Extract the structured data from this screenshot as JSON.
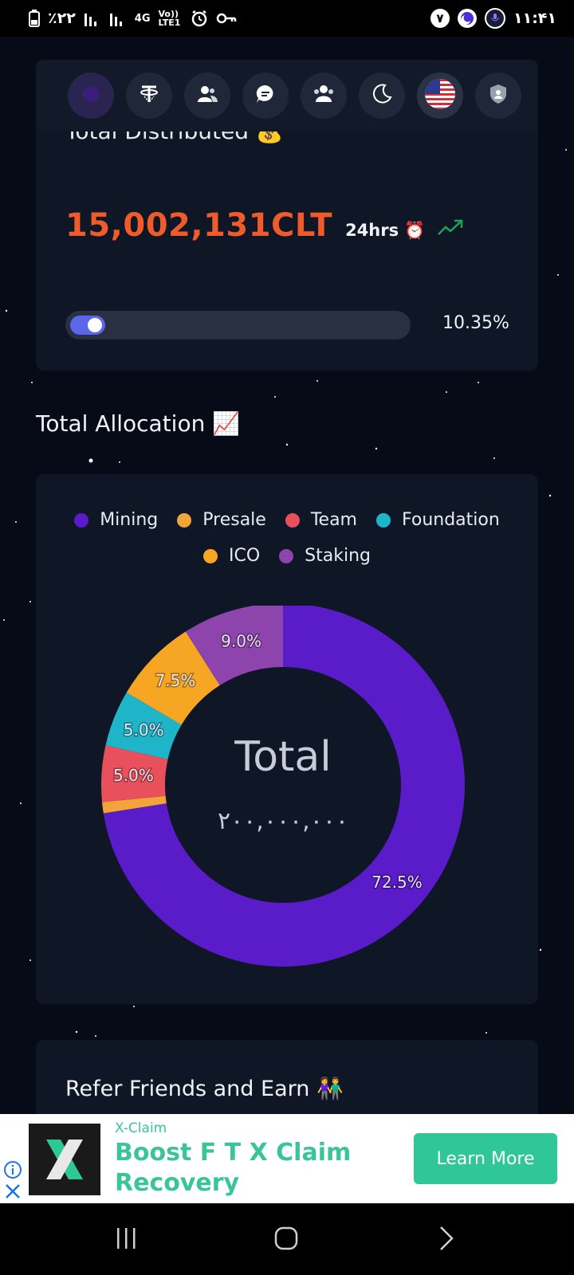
{
  "status_bar": {
    "battery_percent": "٪۲۲",
    "network": "4G",
    "volte": "Vo)) LTE1",
    "badge_text": "۷",
    "time": "۱۱:۴۱"
  },
  "toolbar": {
    "icons": [
      "app-logo-icon",
      "tether-icon",
      "users-icon",
      "chat-icon",
      "team-icon",
      "moon-icon",
      "us-flag-icon",
      "shield-user-icon"
    ]
  },
  "distributed": {
    "title_partial": "Total Distributed 💰",
    "value": "15,002,131CLT",
    "period": "24hrs ⏰",
    "progress_fraction": 0.1035,
    "progress_label": "10.35%"
  },
  "allocation": {
    "section_title": "Total Allocation 📈"
  },
  "chart_data": {
    "type": "pie",
    "variant": "donut",
    "center_title": "Total",
    "center_value": "۲۰۰,۰۰۰,۰۰۰",
    "legend_placement": "top",
    "series": [
      {
        "name": "Mining",
        "value": 72.5,
        "label": "72.5%",
        "color": "#5a1bc9"
      },
      {
        "name": "Presale",
        "value": 1.0,
        "label": "",
        "color": "#f2a33a"
      },
      {
        "name": "Team",
        "value": 5.0,
        "label": "5.0%",
        "color": "#e8505b"
      },
      {
        "name": "Foundation",
        "value": 5.0,
        "label": "5.0%",
        "color": "#1fb5c9"
      },
      {
        "name": "ICO",
        "value": 7.5,
        "label": "7.5%",
        "color": "#f6a623"
      },
      {
        "name": "Staking",
        "value": 9.0,
        "label": "9.0%",
        "color": "#8e44ad"
      }
    ]
  },
  "refer": {
    "title": "Refer Friends and Earn 👫"
  },
  "ad": {
    "brand": "X-Claim",
    "headline": "Boost F T X Claim Recovery",
    "cta": "Learn More"
  }
}
